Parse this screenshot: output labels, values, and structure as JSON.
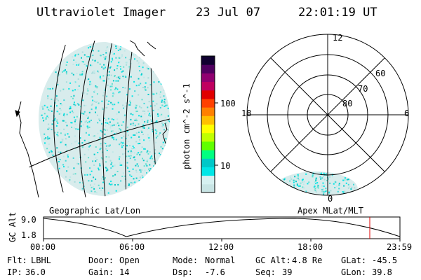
{
  "header": {
    "instrument": "Ultraviolet Imager",
    "date": "23 Jul 07",
    "time": "22:01:19 UT"
  },
  "colorbar": {
    "label": "photon cm^-2 s^-1",
    "ticks": [
      "100",
      "10"
    ],
    "colors": [
      "#c8e4e4",
      "#d6f0f0",
      "#00e6e6",
      "#00c8c8",
      "#00ff80",
      "#60ff00",
      "#c0ff00",
      "#ffff00",
      "#ffc000",
      "#ff8000",
      "#ff4000",
      "#e00000",
      "#c00060",
      "#900070",
      "#500060",
      "#100030"
    ]
  },
  "polar": {
    "lat_labels": [
      "60",
      "70",
      "80"
    ],
    "mlt_labels": [
      "12",
      "18",
      "6",
      "0"
    ]
  },
  "map_labels": {
    "left": "Geographic Lat/Lon",
    "right": "Apex MLat/MLT"
  },
  "altitude_plot": {
    "axis_label": "GC Alt",
    "y_ticks": [
      "9.0",
      "1.8"
    ],
    "x_ticks": [
      "00:00",
      "06:00",
      "12:00",
      "18:00",
      "23:59"
    ]
  },
  "info": {
    "flt_label": "Flt:",
    "flt_value": "LBHL",
    "ip_label": "IP:",
    "ip_value": "36.0",
    "door_label": "Door:",
    "door_value": "Open",
    "gain_label": "Gain:",
    "gain_value": "14",
    "mode_label": "Mode:",
    "mode_value": "Normal",
    "dsp_label": "Dsp:",
    "dsp_value": "-7.6",
    "gcalt_label": "GC Alt:",
    "gcalt_value": "4.8 Re",
    "seq_label": "Seq:",
    "seq_value": "39",
    "glat_label": "GLat:",
    "glat_value": "-45.5",
    "glon_label": "GLon:",
    "glon_value": "39.8"
  }
}
